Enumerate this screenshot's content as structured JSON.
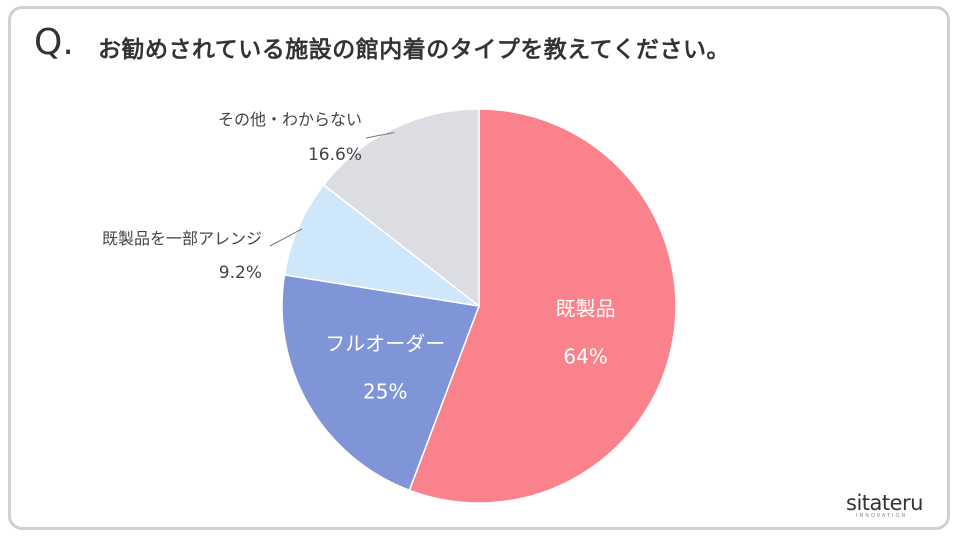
{
  "header": {
    "q_mark": "Q.",
    "question": "お勧めされている施設の館内着のタイプを教えてください。"
  },
  "chart_data": {
    "type": "pie",
    "start_angle_deg": 0,
    "direction": "clockwise",
    "slices": [
      {
        "label": "既製品",
        "value": 64,
        "value_label": "64%",
        "color": "#f9828c",
        "label_position": "inside"
      },
      {
        "label": "フルオーダー",
        "value": 25,
        "value_label": "25%",
        "color": "#8095d8",
        "label_position": "inside"
      },
      {
        "label": "既製品を一部アレンジ",
        "value": 9.2,
        "value_label": "9.2%",
        "color": "#cfe7fa",
        "label_position": "outside"
      },
      {
        "label": "その他・わからない",
        "value": 16.6,
        "value_label": "16.6%",
        "color": "#dcdce3",
        "label_position": "outside"
      }
    ]
  },
  "brand": {
    "logo": "sitateru",
    "tagline": "INNOVATION"
  }
}
